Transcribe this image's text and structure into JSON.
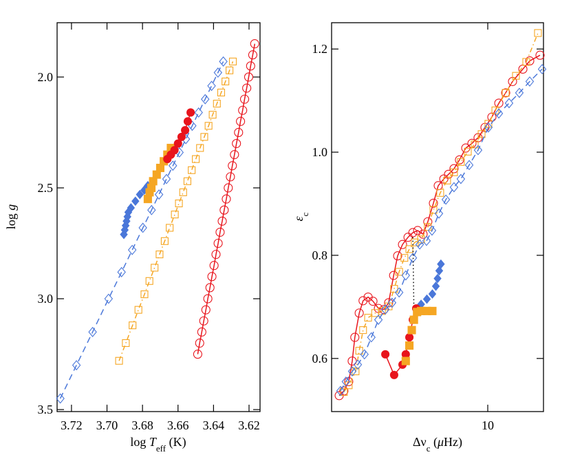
{
  "chart_data": [
    {
      "type": "line",
      "x_label": [
        {
          "text": "log ",
          "style": "plain"
        },
        {
          "text": "T",
          "style": "italic"
        },
        {
          "text": "eff",
          "style": "sub"
        },
        {
          "text": " (K)",
          "style": "plain"
        }
      ],
      "y_label": [
        {
          "text": "log ",
          "style": "plain"
        },
        {
          "text": "g",
          "style": "italic"
        }
      ],
      "xlim": [
        3.7281,
        3.6138
      ],
      "ylim": [
        3.509,
        1.755
      ],
      "xscale": "linear",
      "xticks": [
        3.72,
        {
          "value": 3.7,
          "label": "3.70"
        },
        3.68,
        3.66,
        3.64,
        3.62
      ],
      "yticks": [
        {
          "value": 2,
          "label": "2.0"
        },
        2.5,
        {
          "value": 3,
          "label": "3.0"
        },
        3.5
      ],
      "series": [
        {
          "color": "#e8141c",
          "line": "solid",
          "marker": "circle",
          "filled": false,
          "x": [
            3.6168,
            3.6179,
            3.6191,
            3.6202,
            3.6213,
            3.6225,
            3.6236,
            3.6248,
            3.6259,
            3.6271,
            3.6282,
            3.6294,
            3.6305,
            3.6317,
            3.6328,
            3.634,
            3.6351,
            3.6363,
            3.6374,
            3.6386,
            3.6397,
            3.6409,
            3.642,
            3.6432,
            3.6443,
            3.6455,
            3.6466,
            3.6478,
            3.6489
          ],
          "values": [
            1.85,
            1.9,
            1.95,
            2.0,
            2.05,
            2.1,
            2.15,
            2.2,
            2.25,
            2.3,
            2.35,
            2.4,
            2.45,
            2.5,
            2.55,
            2.6,
            2.65,
            2.7,
            2.75,
            2.8,
            2.85,
            2.9,
            2.95,
            3.0,
            3.05,
            3.1,
            3.15,
            3.2,
            3.25
          ]
        },
        {
          "color": "#f5a623",
          "line": "dashdot",
          "marker": "square",
          "filled": false,
          "x": [
            3.6932,
            3.6894,
            3.6856,
            3.6823,
            3.6789,
            3.6761,
            3.6732,
            3.6704,
            3.6675,
            3.6647,
            3.6618,
            3.6595,
            3.6571,
            3.6547,
            3.6523,
            3.65,
            3.6476,
            3.6452,
            3.6428,
            3.6405,
            3.6381,
            3.6357,
            3.6333,
            3.631,
            3.6291
          ],
          "values": [
            3.28,
            3.2,
            3.12,
            3.05,
            2.98,
            2.92,
            2.86,
            2.8,
            2.74,
            2.68,
            2.62,
            2.57,
            2.52,
            2.47,
            2.42,
            2.37,
            2.32,
            2.27,
            2.22,
            2.17,
            2.12,
            2.07,
            2.02,
            1.97,
            1.93
          ]
        },
        {
          "color": "#4a77d9",
          "line": "dashed",
          "marker": "diamond",
          "filled": false,
          "x": [
            3.7263,
            3.7172,
            3.7081,
            3.6991,
            3.6918,
            3.6858,
            3.6798,
            3.6749,
            3.6707,
            3.6665,
            3.6629,
            3.6592,
            3.6556,
            3.652,
            3.6484,
            3.6447,
            3.6411,
            3.6375,
            3.6345
          ],
          "values": [
            3.45,
            3.3,
            3.15,
            3.0,
            2.88,
            2.78,
            2.68,
            2.6,
            2.53,
            2.46,
            2.4,
            2.34,
            2.28,
            2.22,
            2.16,
            2.1,
            2.04,
            1.98,
            1.93
          ]
        },
        {
          "color": "#4a77d9",
          "line": "none",
          "marker": "diamond",
          "filled": true,
          "x": [
            3.6905,
            3.69,
            3.6895,
            3.689,
            3.6885,
            3.688,
            3.6865,
            3.684,
            3.6815,
            3.679,
            3.677
          ],
          "values": [
            2.71,
            2.69,
            2.67,
            2.65,
            2.63,
            2.61,
            2.59,
            2.56,
            2.53,
            2.51,
            2.49
          ]
        },
        {
          "color": "#f5a623",
          "line": "none",
          "marker": "square",
          "filled": true,
          "x": [
            3.677,
            3.676,
            3.675,
            3.674,
            3.672,
            3.67,
            3.668,
            3.666,
            3.664
          ],
          "values": [
            2.55,
            2.52,
            2.5,
            2.47,
            2.44,
            2.41,
            2.38,
            2.35,
            2.32
          ]
        },
        {
          "color": "#e8141c",
          "line": "solid",
          "marker": "circle",
          "filled": true,
          "x": [
            3.666,
            3.664,
            3.662,
            3.66,
            3.658,
            3.656,
            3.6545,
            3.6529
          ],
          "values": [
            2.37,
            2.35,
            2.33,
            2.3,
            2.27,
            2.24,
            2.2,
            2.16
          ]
        }
      ]
    },
    {
      "type": "line",
      "x_label": [
        {
          "text": "Δν",
          "style": "plain"
        },
        {
          "text": "c",
          "style": "sub"
        },
        {
          "text": " (",
          "style": "plain"
        },
        {
          "text": "μ",
          "style": "italic"
        },
        {
          "text": "Hz)",
          "style": "plain"
        }
      ],
      "y_label": [
        {
          "text": "ε",
          "style": "italic"
        },
        {
          "text": "c",
          "style": "sub"
        }
      ],
      "xlim": [
        2.26,
        17
      ],
      "ylim": [
        0.497,
        1.251
      ],
      "xscale": "log",
      "xticks": [
        10
      ],
      "yticks": [
        0.6,
        0.8,
        {
          "value": 1,
          "label": "1.0"
        },
        1.2
      ],
      "series": [
        {
          "color": "#e8141c",
          "line": "solid",
          "marker": "circle",
          "filled": false,
          "x": [
            2.43,
            2.54,
            2.66,
            2.75,
            2.82,
            2.94,
            3.05,
            3.2,
            3.35,
            3.53,
            3.72,
            3.89,
            4.08,
            4.24,
            4.44,
            4.68,
            4.9,
            5.13,
            5.4,
            5.65,
            5.96,
            6.24,
            6.58,
            6.88,
            7.25,
            7.64,
            8.11,
            8.6,
            9.12,
            9.74,
            10.4,
            11.11,
            11.86,
            12.66,
            13.97,
            14.91,
            16.45
          ],
          "values": [
            0.528,
            0.537,
            0.555,
            0.595,
            0.641,
            0.688,
            0.712,
            0.719,
            0.711,
            0.697,
            0.695,
            0.708,
            0.761,
            0.799,
            0.821,
            0.835,
            0.844,
            0.848,
            0.841,
            0.865,
            0.901,
            0.935,
            0.948,
            0.957,
            0.968,
            0.985,
            1.008,
            1.017,
            1.028,
            1.048,
            1.068,
            1.095,
            1.115,
            1.137,
            1.161,
            1.177,
            1.188
          ]
        },
        {
          "color": "#f5a623",
          "line": "dashdot",
          "marker": "square",
          "filled": false,
          "x": [
            2.54,
            2.66,
            2.84,
            2.94,
            3.05,
            3.2,
            3.42,
            3.65,
            3.89,
            4.1,
            4.3,
            4.52,
            4.74,
            4.99,
            5.3,
            5.65,
            5.96,
            6.36,
            6.79,
            7.25,
            7.74,
            8.27,
            8.83,
            9.43,
            10.06,
            10.75,
            11.86,
            13.08,
            14.43,
            16.13
          ],
          "values": [
            0.535,
            0.548,
            0.575,
            0.615,
            0.655,
            0.679,
            0.688,
            0.692,
            0.701,
            0.735,
            0.768,
            0.795,
            0.812,
            0.825,
            0.831,
            0.855,
            0.888,
            0.921,
            0.945,
            0.961,
            0.981,
            1.001,
            1.015,
            1.035,
            1.055,
            1.081,
            1.115,
            1.148,
            1.175,
            1.231
          ]
        },
        {
          "color": "#4a77d9",
          "line": "dashed",
          "marker": "diamond",
          "filled": false,
          "x": [
            2.46,
            2.59,
            2.75,
            2.9,
            3.09,
            3.3,
            3.53,
            3.77,
            4.02,
            4.3,
            4.58,
            4.9,
            5.23,
            5.58,
            5.88,
            6.28,
            6.71,
            7.25,
            7.74,
            8.38,
            9.12,
            10.06,
            11.11,
            12.25,
            13.51,
            14.91,
            16.78
          ],
          "values": [
            0.537,
            0.555,
            0.575,
            0.588,
            0.608,
            0.641,
            0.675,
            0.695,
            0.708,
            0.728,
            0.761,
            0.795,
            0.821,
            0.828,
            0.848,
            0.881,
            0.908,
            0.932,
            0.948,
            0.975,
            1.004,
            1.048,
            1.075,
            1.095,
            1.115,
            1.137,
            1.161
          ]
        },
        {
          "color": "#4a77d9",
          "line": "none",
          "marker": "diamond",
          "filled": true,
          "x": [
            5.06,
            5.3,
            5.6,
            5.9,
            6.1,
            6.2,
            6.3,
            6.4
          ],
          "values": [
            0.695,
            0.705,
            0.715,
            0.725,
            0.74,
            0.755,
            0.77,
            0.783
          ]
        },
        {
          "color": "#000000",
          "line": "dotted",
          "marker": "none",
          "filled": false,
          "x": [
            4.9,
            4.95
          ],
          "values": [
            0.835,
            0.69
          ]
        },
        {
          "color": "#e8141c",
          "line": "solid",
          "marker": "circle",
          "filled": true,
          "x": [
            3.77,
            4.1,
            4.44,
            4.58,
            4.74,
            4.9,
            5.06
          ],
          "values": [
            0.608,
            0.568,
            0.588,
            0.608,
            0.641,
            0.675,
            0.697
          ]
        },
        {
          "color": "#f5a623",
          "line": "none",
          "marker": "square",
          "filled": true,
          "x": [
            4.58,
            4.74,
            4.85,
            4.95,
            5.1,
            5.3,
            5.6,
            5.9
          ],
          "values": [
            0.595,
            0.625,
            0.655,
            0.675,
            0.69,
            0.692,
            0.692,
            0.692
          ]
        }
      ]
    }
  ]
}
